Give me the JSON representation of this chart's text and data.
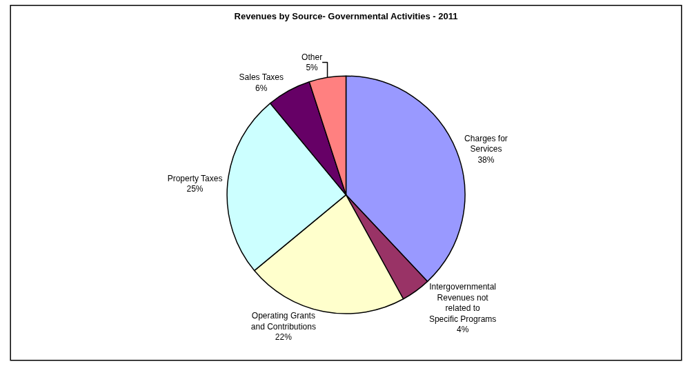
{
  "chart_data": {
    "type": "pie",
    "title": "Revenues by Source- Governmental Activities - 2011",
    "categories": [
      "Charges for Services",
      "Intergovernmental Revenues not related to Specific Programs",
      "Operating Grants and Contributions",
      "Property Taxes",
      "Sales Taxes",
      "Other"
    ],
    "values": [
      38,
      4,
      22,
      25,
      6,
      5
    ],
    "colors": [
      "#9999ff",
      "#993366",
      "#ffffcc",
      "#ccffff",
      "#660066",
      "#ff8080"
    ],
    "value_labels": [
      "38%",
      "4%",
      "22%",
      "25%",
      "6%",
      "5%"
    ],
    "legend": false
  }
}
